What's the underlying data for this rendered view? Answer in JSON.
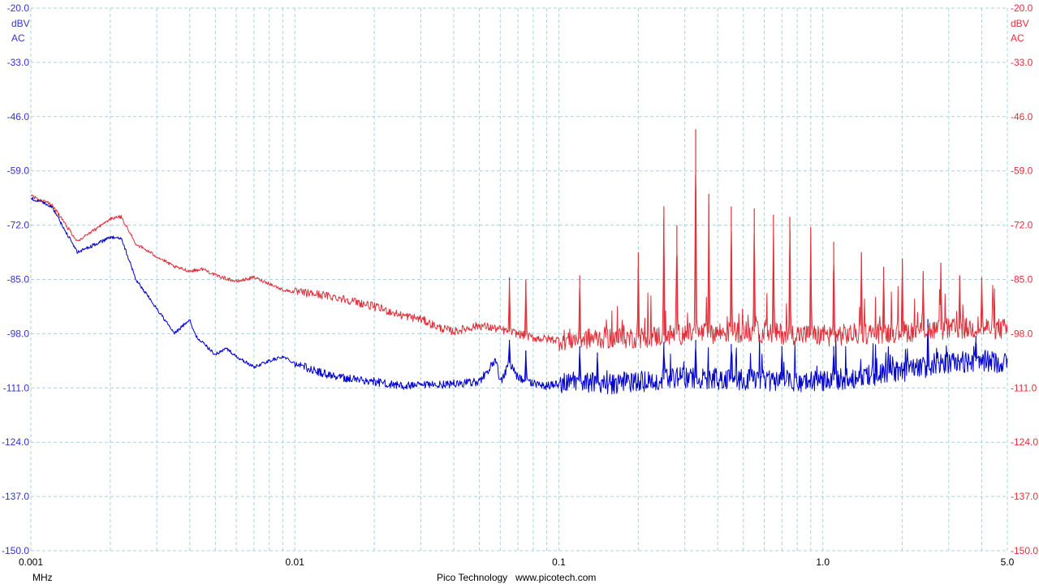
{
  "chart_data": {
    "type": "line",
    "title": "",
    "x_scale": "log",
    "xlim": [
      0.001,
      5.0
    ],
    "ylim": [
      -150,
      -20
    ],
    "grid": true,
    "x_unit": "MHz",
    "x_ticks": [
      {
        "value": 0.001,
        "label": "0.001"
      },
      {
        "value": 0.01,
        "label": "0.01"
      },
      {
        "value": 0.1,
        "label": "0.1"
      },
      {
        "value": 1.0,
        "label": "1.0"
      },
      {
        "value": 5.0,
        "label": "5.0"
      }
    ],
    "y_ticks": [
      "-20.0",
      "-33.0",
      "-46.0",
      "-59.0",
      "-72.0",
      "-85.0",
      "-98.0",
      "-111.0",
      "-124.0",
      "-137.0",
      "-150.0"
    ],
    "left_axis": {
      "unit": "dBV",
      "coupling": "AC",
      "color": "#3333cc"
    },
    "right_axis": {
      "unit": "dBV",
      "coupling": "AC",
      "color": "#e0303a"
    },
    "series": [
      {
        "color": "#0000cc",
        "x": [
          0.001,
          0.0012,
          0.0015,
          0.002,
          0.0022,
          0.0025,
          0.003,
          0.0035,
          0.004,
          0.0042,
          0.005,
          0.0055,
          0.006,
          0.007,
          0.008,
          0.009,
          0.01,
          0.012,
          0.015,
          0.02,
          0.025,
          0.03,
          0.04,
          0.05,
          0.055,
          0.058,
          0.06,
          0.065,
          0.07,
          0.08,
          0.09,
          0.1,
          0.12,
          0.15,
          0.2,
          0.3,
          0.5,
          1.0,
          2.0,
          3.0,
          4.0,
          5.0
        ],
        "y": [
          -65.5,
          -67.5,
          -78.5,
          -75.0,
          -75.0,
          -85.0,
          -92.0,
          -98.0,
          -94.5,
          -98.5,
          -103.0,
          -101.5,
          -103.5,
          -106.0,
          -104.5,
          -103.5,
          -105.0,
          -107.0,
          -108.5,
          -109.5,
          -110.5,
          -110.5,
          -110.0,
          -109.5,
          -106.0,
          -104.5,
          -110.0,
          -105.0,
          -108.5,
          -110.0,
          -110.5,
          -110.0,
          -109.5,
          -110.0,
          -109.5,
          -108.5,
          -109.0,
          -109.5,
          -107.0,
          -105.0,
          -104.5,
          -105.0
        ],
        "peaks": [
          {
            "x": 0.065,
            "y": -99.5
          },
          {
            "x": 0.075,
            "y": -102.0
          },
          {
            "x": 0.12,
            "y": -101.0
          },
          {
            "x": 0.14,
            "y": -102.5
          },
          {
            "x": 0.25,
            "y": -100.0
          },
          {
            "x": 0.33,
            "y": -99.5
          },
          {
            "x": 0.45,
            "y": -100.5
          },
          {
            "x": 0.7,
            "y": -101.0
          },
          {
            "x": 1.1,
            "y": -101.0
          },
          {
            "x": 1.8,
            "y": -103.0
          },
          {
            "x": 2.5,
            "y": -94.5
          },
          {
            "x": 3.8,
            "y": -98.5
          }
        ]
      },
      {
        "color": "#e0303a",
        "x": [
          0.001,
          0.0012,
          0.0015,
          0.002,
          0.0022,
          0.0025,
          0.003,
          0.0035,
          0.004,
          0.0045,
          0.005,
          0.006,
          0.007,
          0.008,
          0.009,
          0.01,
          0.012,
          0.015,
          0.02,
          0.025,
          0.03,
          0.035,
          0.04,
          0.05,
          0.06,
          0.07,
          0.08,
          0.1,
          0.15,
          0.2,
          0.3,
          0.5,
          1.0,
          2.0,
          3.0,
          4.0,
          5.0
        ],
        "y": [
          -65.0,
          -67.0,
          -76.0,
          -70.5,
          -70.0,
          -76.5,
          -79.5,
          -82.0,
          -83.0,
          -82.5,
          -84.0,
          -85.5,
          -84.5,
          -86.0,
          -87.5,
          -88.0,
          -88.5,
          -89.5,
          -91.5,
          -93.5,
          -94.5,
          -96.5,
          -97.5,
          -96.0,
          -97.0,
          -98.0,
          -99.0,
          -99.5,
          -99.0,
          -99.0,
          -98.0,
          -97.5,
          -98.5,
          -97.5,
          -97.0,
          -96.5,
          -97.0
        ],
        "peaks": [
          {
            "x": 0.065,
            "y": -84.5
          },
          {
            "x": 0.075,
            "y": -85.0
          },
          {
            "x": 0.12,
            "y": -84.0
          },
          {
            "x": 0.2,
            "y": -78.5
          },
          {
            "x": 0.25,
            "y": -67.5
          },
          {
            "x": 0.28,
            "y": -72.0
          },
          {
            "x": 0.33,
            "y": -49.0
          },
          {
            "x": 0.37,
            "y": -64.5
          },
          {
            "x": 0.45,
            "y": -67.5
          },
          {
            "x": 0.55,
            "y": -68.0
          },
          {
            "x": 0.65,
            "y": -69.5
          },
          {
            "x": 0.75,
            "y": -70.0
          },
          {
            "x": 0.9,
            "y": -72.5
          },
          {
            "x": 1.1,
            "y": -76.0
          },
          {
            "x": 1.4,
            "y": -78.5
          },
          {
            "x": 1.7,
            "y": -82.0
          },
          {
            "x": 2.0,
            "y": -80.0
          },
          {
            "x": 2.4,
            "y": -83.0
          },
          {
            "x": 2.8,
            "y": -81.0
          },
          {
            "x": 3.3,
            "y": -84.0
          },
          {
            "x": 4.0,
            "y": -84.5
          }
        ]
      }
    ]
  },
  "footer": {
    "unit": "MHz",
    "brand": "Pico Technology",
    "website": "www.picotech.com"
  },
  "colors": {
    "grid": "#a8d4df",
    "left_axis_text": "#3333cc",
    "right_axis_text": "#e0303a"
  }
}
